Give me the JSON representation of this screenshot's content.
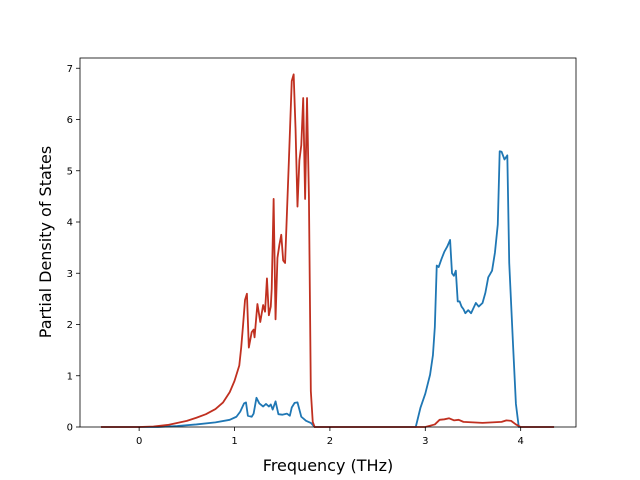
{
  "chart_data": {
    "type": "line",
    "title": "",
    "xlabel": "Frequency (THz)",
    "ylabel": "Partial Density of States",
    "xlim": [
      -0.62,
      4.58
    ],
    "ylim": [
      0,
      7.2
    ],
    "xticks": [
      0,
      1,
      2,
      3,
      4
    ],
    "yticks": [
      0,
      1,
      2,
      3,
      4,
      5,
      6,
      7
    ],
    "grid": false,
    "legend": "none",
    "series": [
      {
        "color": "#1f77b4",
        "points": [
          [
            -0.4,
            0
          ],
          [
            0.2,
            0
          ],
          [
            0.4,
            0.02
          ],
          [
            0.6,
            0.05
          ],
          [
            0.8,
            0.09
          ],
          [
            0.95,
            0.14
          ],
          [
            1.02,
            0.2
          ],
          [
            1.06,
            0.3
          ],
          [
            1.1,
            0.46
          ],
          [
            1.12,
            0.48
          ],
          [
            1.14,
            0.22
          ],
          [
            1.18,
            0.2
          ],
          [
            1.2,
            0.26
          ],
          [
            1.23,
            0.57
          ],
          [
            1.26,
            0.46
          ],
          [
            1.3,
            0.4
          ],
          [
            1.33,
            0.45
          ],
          [
            1.36,
            0.4
          ],
          [
            1.38,
            0.44
          ],
          [
            1.4,
            0.34
          ],
          [
            1.43,
            0.5
          ],
          [
            1.46,
            0.25
          ],
          [
            1.5,
            0.24
          ],
          [
            1.55,
            0.26
          ],
          [
            1.58,
            0.22
          ],
          [
            1.6,
            0.38
          ],
          [
            1.63,
            0.47
          ],
          [
            1.66,
            0.48
          ],
          [
            1.7,
            0.2
          ],
          [
            1.75,
            0.12
          ],
          [
            1.8,
            0.08
          ],
          [
            1.84,
            0
          ],
          [
            2.9,
            0
          ],
          [
            2.95,
            0.38
          ],
          [
            3.0,
            0.65
          ],
          [
            3.05,
            1.02
          ],
          [
            3.08,
            1.4
          ],
          [
            3.1,
            1.95
          ],
          [
            3.12,
            3.15
          ],
          [
            3.14,
            3.12
          ],
          [
            3.17,
            3.28
          ],
          [
            3.2,
            3.42
          ],
          [
            3.23,
            3.52
          ],
          [
            3.26,
            3.65
          ],
          [
            3.28,
            3.0
          ],
          [
            3.3,
            2.95
          ],
          [
            3.32,
            3.05
          ],
          [
            3.34,
            2.45
          ],
          [
            3.36,
            2.45
          ],
          [
            3.38,
            2.35
          ],
          [
            3.4,
            2.3
          ],
          [
            3.42,
            2.22
          ],
          [
            3.45,
            2.28
          ],
          [
            3.48,
            2.22
          ],
          [
            3.5,
            2.3
          ],
          [
            3.53,
            2.42
          ],
          [
            3.56,
            2.35
          ],
          [
            3.6,
            2.42
          ],
          [
            3.63,
            2.62
          ],
          [
            3.66,
            2.92
          ],
          [
            3.7,
            3.05
          ],
          [
            3.73,
            3.4
          ],
          [
            3.76,
            3.95
          ],
          [
            3.78,
            5.38
          ],
          [
            3.8,
            5.37
          ],
          [
            3.83,
            5.22
          ],
          [
            3.86,
            5.3
          ],
          [
            3.88,
            3.2
          ],
          [
            3.92,
            1.6
          ],
          [
            3.95,
            0.45
          ],
          [
            3.98,
            0
          ],
          [
            4.35,
            0
          ]
        ]
      },
      {
        "color": "#c03020",
        "points": [
          [
            -0.4,
            0
          ],
          [
            0.0,
            0
          ],
          [
            0.15,
            0.01
          ],
          [
            0.3,
            0.04
          ],
          [
            0.5,
            0.12
          ],
          [
            0.6,
            0.18
          ],
          [
            0.7,
            0.25
          ],
          [
            0.8,
            0.35
          ],
          [
            0.88,
            0.48
          ],
          [
            0.95,
            0.68
          ],
          [
            1.0,
            0.9
          ],
          [
            1.05,
            1.2
          ],
          [
            1.07,
            1.55
          ],
          [
            1.09,
            2.0
          ],
          [
            1.11,
            2.48
          ],
          [
            1.13,
            2.6
          ],
          [
            1.15,
            1.55
          ],
          [
            1.18,
            1.85
          ],
          [
            1.2,
            1.9
          ],
          [
            1.21,
            1.75
          ],
          [
            1.24,
            2.4
          ],
          [
            1.27,
            2.05
          ],
          [
            1.3,
            2.38
          ],
          [
            1.32,
            2.25
          ],
          [
            1.34,
            2.9
          ],
          [
            1.36,
            2.18
          ],
          [
            1.38,
            2.35
          ],
          [
            1.39,
            2.7
          ],
          [
            1.41,
            4.45
          ],
          [
            1.43,
            2.1
          ],
          [
            1.45,
            3.3
          ],
          [
            1.47,
            3.55
          ],
          [
            1.49,
            3.75
          ],
          [
            1.51,
            3.25
          ],
          [
            1.53,
            3.2
          ],
          [
            1.55,
            4.2
          ],
          [
            1.57,
            5.2
          ],
          [
            1.6,
            6.75
          ],
          [
            1.62,
            6.88
          ],
          [
            1.64,
            5.8
          ],
          [
            1.66,
            4.3
          ],
          [
            1.68,
            5.2
          ],
          [
            1.7,
            5.5
          ],
          [
            1.72,
            6.42
          ],
          [
            1.74,
            4.45
          ],
          [
            1.76,
            6.42
          ],
          [
            1.78,
            4.5
          ],
          [
            1.8,
            0.7
          ],
          [
            1.82,
            0.1
          ],
          [
            1.84,
            0
          ],
          [
            3.0,
            0
          ],
          [
            3.1,
            0.05
          ],
          [
            3.15,
            0.14
          ],
          [
            3.2,
            0.15
          ],
          [
            3.25,
            0.17
          ],
          [
            3.3,
            0.13
          ],
          [
            3.35,
            0.14
          ],
          [
            3.4,
            0.1
          ],
          [
            3.5,
            0.09
          ],
          [
            3.6,
            0.08
          ],
          [
            3.7,
            0.09
          ],
          [
            3.8,
            0.1
          ],
          [
            3.85,
            0.13
          ],
          [
            3.9,
            0.12
          ],
          [
            3.95,
            0.05
          ],
          [
            4.0,
            0
          ],
          [
            4.35,
            0
          ]
        ]
      }
    ]
  }
}
